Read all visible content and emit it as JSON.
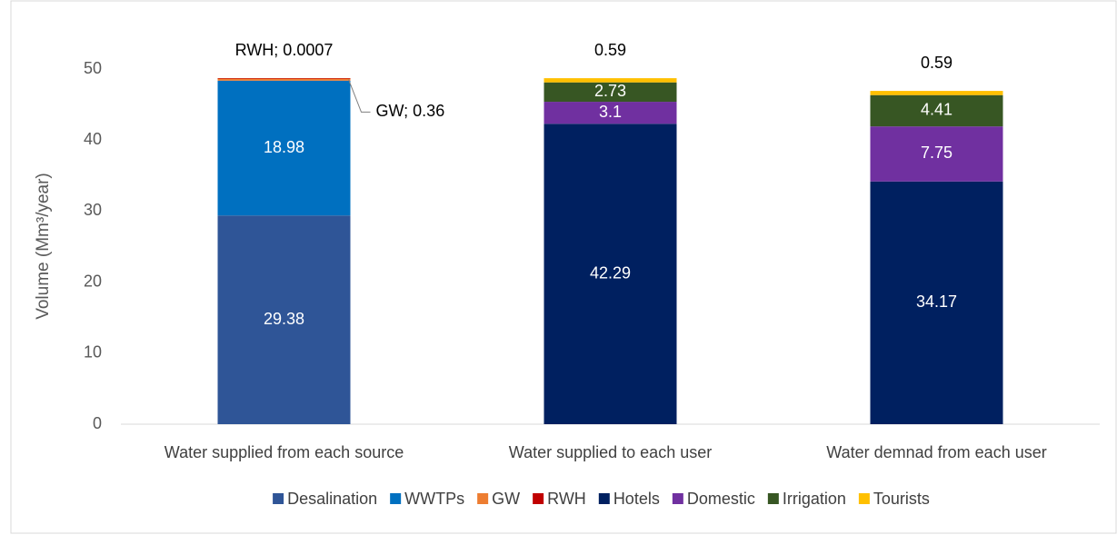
{
  "chart_data": {
    "type": "stacked_bar",
    "y_label": "Volume (Mm³/year)",
    "categories": [
      "Water supplied from each source",
      "Water supplied to each user",
      "Water demnad from each user"
    ],
    "series": [
      {
        "name": "Desalination",
        "color": "#2f5597",
        "values": [
          29.38,
          null,
          null
        ]
      },
      {
        "name": "WWTPs",
        "color": "#0070c0",
        "values": [
          18.98,
          null,
          null
        ]
      },
      {
        "name": "GW",
        "color": "#ed7d31",
        "values": [
          0.36,
          null,
          null
        ],
        "value_labels": [
          "GW; 0.36",
          null,
          null
        ]
      },
      {
        "name": "RWH",
        "color": "#c00000",
        "values": [
          0.0007,
          null,
          null
        ],
        "value_labels": [
          "RWH; 0.0007",
          null,
          null
        ]
      },
      {
        "name": "Hotels",
        "color": "#002060",
        "values": [
          null,
          42.29,
          34.17
        ]
      },
      {
        "name": "Domestic",
        "color": "#7030a0",
        "values": [
          null,
          3.1,
          7.75
        ]
      },
      {
        "name": "Irrigation",
        "color": "#375623",
        "values": [
          null,
          2.73,
          4.41
        ]
      },
      {
        "name": "Tourists",
        "color": "#ffc000",
        "values": [
          null,
          0.59,
          0.59
        ]
      }
    ],
    "ylim": [
      0,
      50
    ],
    "yticks": [
      0,
      10,
      20,
      30,
      40,
      50
    ],
    "grid": false,
    "legend": "bottom"
  }
}
